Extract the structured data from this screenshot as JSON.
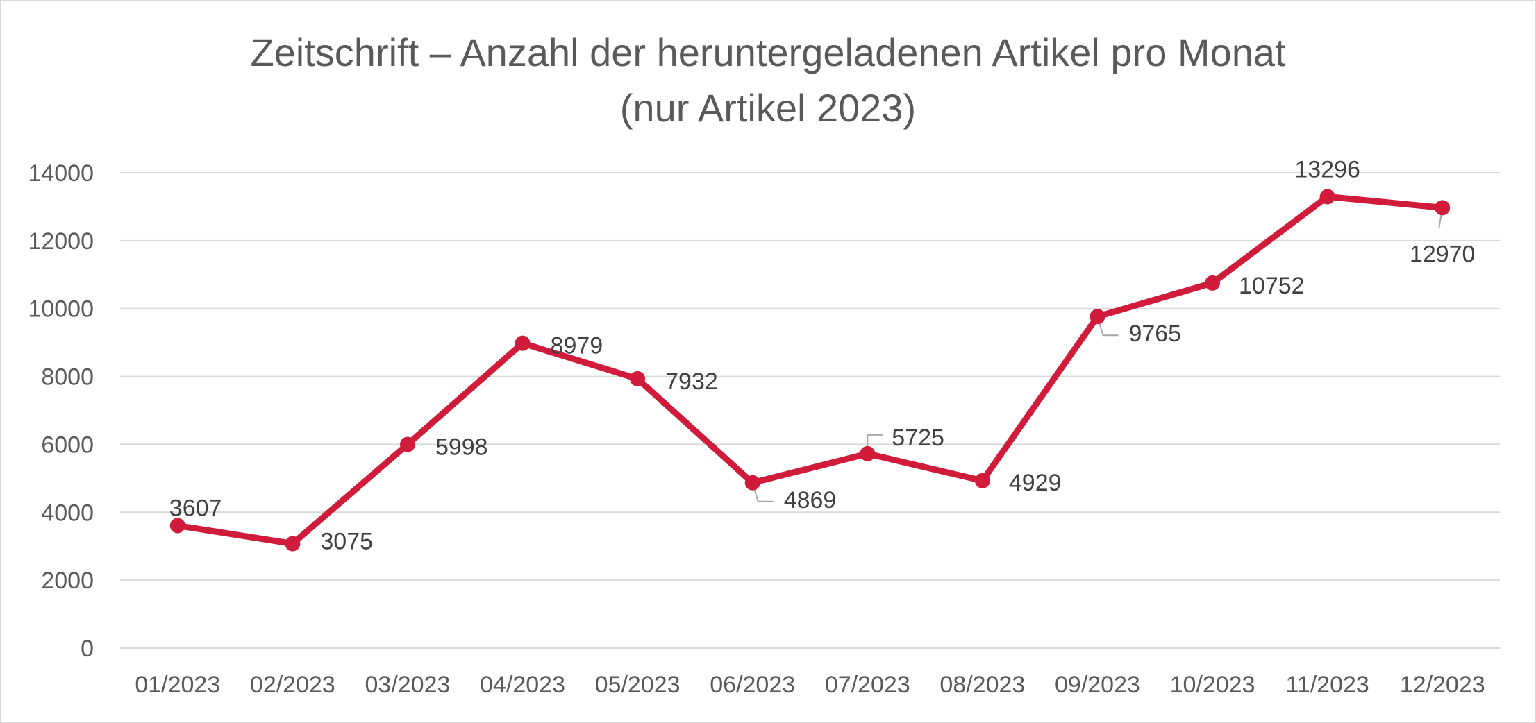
{
  "chart_data": {
    "type": "line",
    "title": "Zeitschrift – Anzahl der heruntergeladenen Artikel pro Monat",
    "subtitle": "(nur Artikel 2023)",
    "categories": [
      "01/2023",
      "02/2023",
      "03/2023",
      "04/2023",
      "05/2023",
      "06/2023",
      "07/2023",
      "08/2023",
      "09/2023",
      "10/2023",
      "11/2023",
      "12/2023"
    ],
    "series": [
      {
        "values": [
          3607,
          3075,
          5998,
          8979,
          7932,
          4869,
          5725,
          4929,
          9765,
          10752,
          13296,
          12970
        ]
      }
    ],
    "ylim": [
      0,
      14000
    ],
    "yticks": [
      0,
      2000,
      4000,
      6000,
      8000,
      10000,
      12000,
      14000
    ],
    "grid": true,
    "data_labels": true,
    "colors": {
      "line": "#d01c3a",
      "grid": "#d9d9d9",
      "text": "#595959"
    }
  }
}
